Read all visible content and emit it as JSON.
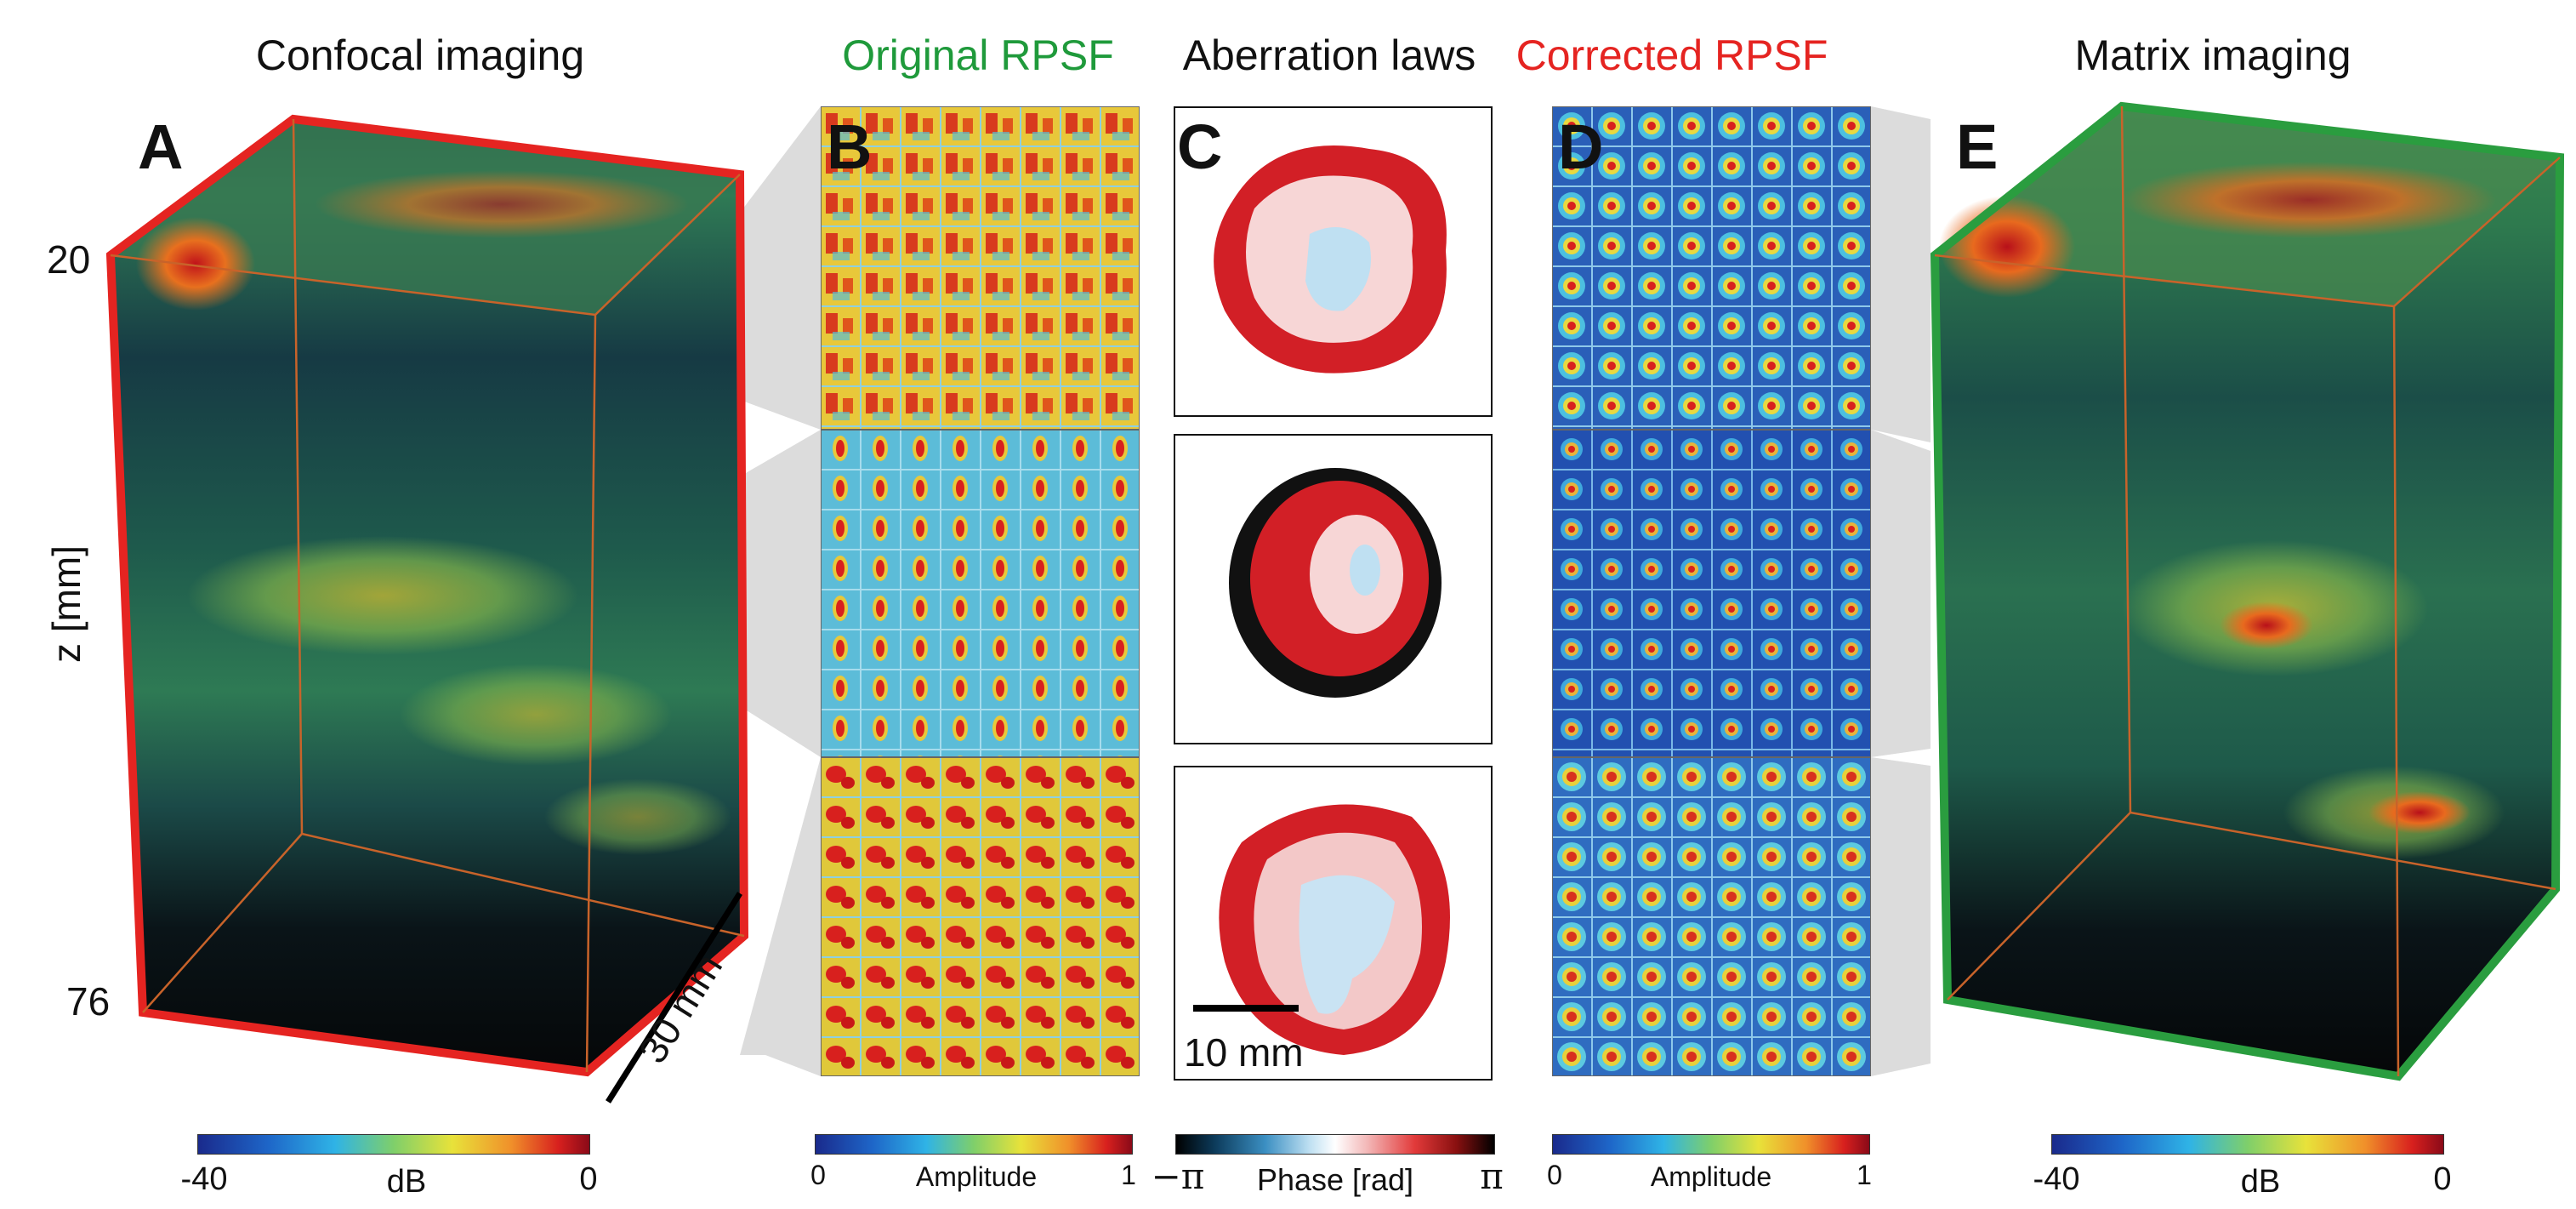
{
  "panels": {
    "A": {
      "title": "Confocal imaging",
      "letter": "A",
      "border_color": "#e52421"
    },
    "B": {
      "title": "Original RPSF",
      "letter": "B",
      "title_color": "#1f9a3b"
    },
    "C": {
      "title": "Aberration laws",
      "letter": "C"
    },
    "D": {
      "title": "Corrected RPSF",
      "letter": "D",
      "title_color": "#e52421"
    },
    "E": {
      "title": "Matrix imaging",
      "letter": "E",
      "border_color": "#2a9d3f"
    }
  },
  "axis": {
    "z_label": "z [mm]",
    "z_top": "20",
    "z_bottom": "76",
    "depth_label": "30 mm"
  },
  "scale_bar": {
    "label": "10 mm"
  },
  "colorbars": {
    "A": {
      "min": "-40",
      "mid": "dB",
      "max": "0"
    },
    "B": {
      "min": "0",
      "mid": "Amplitude",
      "max": "1"
    },
    "C": {
      "min": "−π",
      "mid": "Phase [rad]",
      "max": "π"
    },
    "D": {
      "min": "0",
      "mid": "Amplitude",
      "max": "1"
    },
    "E": {
      "min": "-40",
      "mid": "dB",
      "max": "0"
    }
  }
}
